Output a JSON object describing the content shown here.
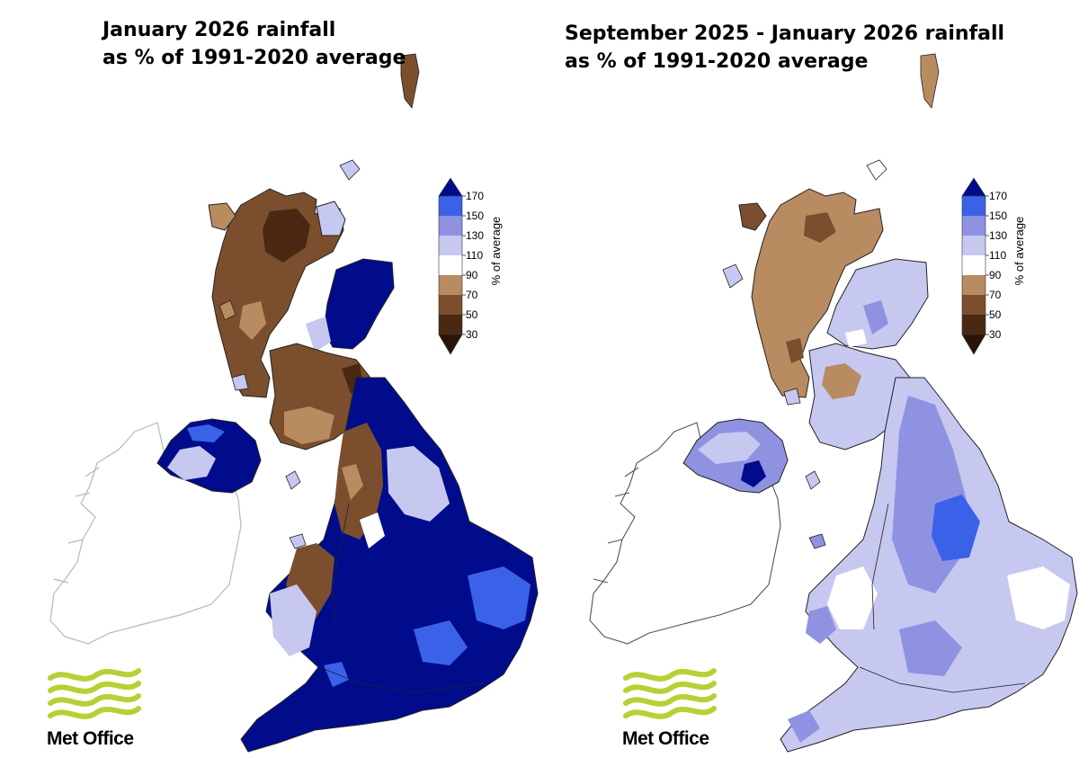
{
  "colors": {
    "band_30_50": "#4a2812",
    "band_50_70": "#7b4f2e",
    "band_70_90": "#b98b60",
    "band_90_110": "#ffffff",
    "band_110_130": "#c6c8f0",
    "band_130_150": "#8f92e0",
    "band_150_170": "#3a62e8",
    "band_170_plus": "#000c8c",
    "ireland_outline": "#b8b8b8",
    "logo_green": "#b6d134"
  },
  "panels": [
    {
      "title_line1": "January 2026 rainfall",
      "title_line2": "as % of 1991-2020 average",
      "legend": {
        "axis_label": "% of average",
        "ticks": [
          "170",
          "150",
          "130",
          "110",
          "90",
          "70",
          "50",
          "30"
        ]
      },
      "logo": {
        "icon": "met-office-logo-icon",
        "text": "Met Office"
      }
    },
    {
      "title_line1": "September 2025 - January 2026 rainfall",
      "title_line2": "as % of 1991-2020 average",
      "legend": {
        "axis_label": "% of average",
        "ticks": [
          "170",
          "150",
          "130",
          "110",
          "90",
          "70",
          "50",
          "30"
        ]
      },
      "logo": {
        "icon": "met-office-logo-icon",
        "text": "Met Office"
      }
    }
  ]
}
